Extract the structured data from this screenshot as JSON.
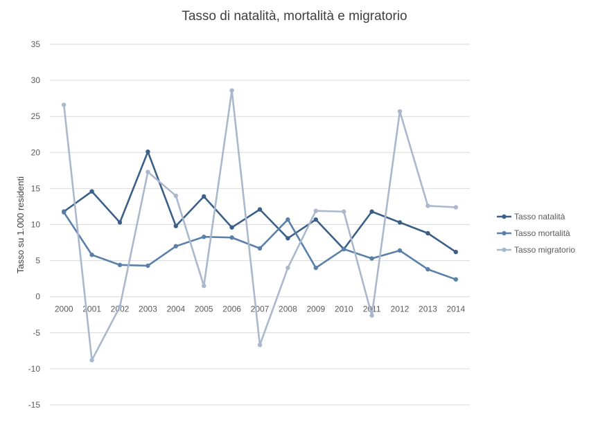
{
  "chart_data": {
    "type": "line",
    "title": "Tasso di natalità, mortalità e migratorio",
    "xlabel": "",
    "ylabel": "Tasso su 1.000 residenti",
    "ylim": [
      -15,
      35
    ],
    "yticks": [
      35,
      30,
      25,
      20,
      15,
      10,
      5,
      0,
      -5,
      -10,
      -15
    ],
    "grid": true,
    "legend_position": "right",
    "categories": [
      "2000",
      "2001",
      "2002",
      "2003",
      "2004",
      "2005",
      "2006",
      "2007",
      "2008",
      "2009",
      "2010",
      "2011",
      "2012",
      "2013",
      "2014"
    ],
    "series": [
      {
        "name": "Tasso natalità",
        "color": "#3b5f87",
        "values": [
          11.8,
          14.6,
          10.3,
          20.1,
          9.8,
          13.9,
          9.6,
          12.1,
          8.1,
          10.7,
          6.6,
          11.8,
          10.3,
          8.8,
          6.2
        ]
      },
      {
        "name": "Tasso mortalità",
        "color": "#5a80aa",
        "values": [
          11.7,
          5.8,
          4.4,
          4.3,
          7.0,
          8.3,
          8.2,
          6.7,
          10.7,
          4.0,
          6.6,
          5.3,
          6.4,
          3.8,
          2.4
        ]
      },
      {
        "name": "Tasso migratorio",
        "color": "#a9b8cc",
        "values": [
          26.6,
          -8.8,
          -1.4,
          17.3,
          14.0,
          1.5,
          28.6,
          -6.7,
          4.0,
          11.9,
          11.8,
          -2.6,
          25.7,
          12.6,
          12.4
        ]
      }
    ]
  }
}
